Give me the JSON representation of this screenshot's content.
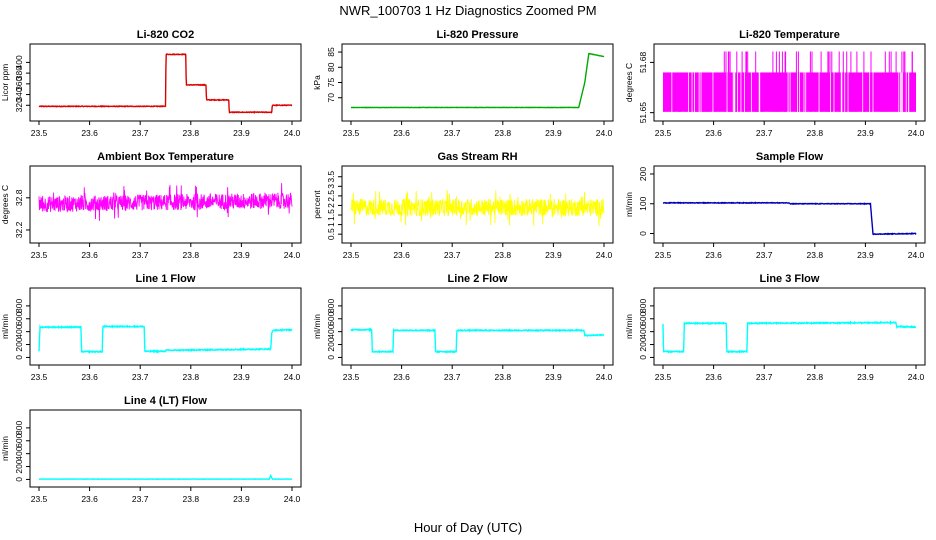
{
  "figure": {
    "title": "NWR_100703  1 Hz Diagnostics Zoomed PM",
    "xlabel": "Hour of Day (UTC)"
  },
  "chart_data": [
    {
      "type": "line",
      "title": "Li-820 CO2",
      "ylabel": "Licor ppm",
      "color": "#dd0000",
      "xlim": [
        23.5,
        24.0
      ],
      "ylim": [
        300,
        425
      ],
      "xticks": [
        "23.5",
        "23.6",
        "23.7",
        "23.8",
        "23.9",
        "24.0"
      ],
      "yticks": [
        320,
        340,
        360,
        380,
        400
      ],
      "noise": 0.6,
      "series": [
        {
          "x": [
            23.5,
            23.75,
            23.751,
            23.79,
            23.791,
            23.83,
            23.831,
            23.875,
            23.876,
            23.96,
            23.961,
            24.0
          ],
          "y": [
            318,
            318,
            415,
            415,
            358,
            358,
            330,
            330,
            307,
            307,
            320,
            320
          ]
        }
      ]
    },
    {
      "type": "line",
      "title": "Li-820 Pressure",
      "ylabel": "kPa",
      "color": "#00aa00",
      "xlim": [
        23.5,
        24.0
      ],
      "ylim": [
        64,
        86
      ],
      "xticks": [
        "23.5",
        "23.6",
        "23.7",
        "23.8",
        "23.9",
        "24.0"
      ],
      "yticks": [
        70,
        75,
        80,
        85
      ],
      "noise": 0.05,
      "series": [
        {
          "x": [
            23.5,
            23.935,
            23.95,
            23.962,
            23.97,
            23.985,
            24.0
          ],
          "y": [
            66.8,
            66.8,
            66.8,
            75,
            84.5,
            84,
            83.5
          ]
        }
      ]
    },
    {
      "type": "line",
      "title": "Li-820 Temperature",
      "ylabel": "degrees C",
      "color": "#ff00ff",
      "style": "dense",
      "xlim": [
        23.5,
        24.0
      ],
      "ylim": [
        51.648,
        51.688
      ],
      "xticks": [
        "23.5",
        "23.6",
        "23.7",
        "23.8",
        "23.9",
        "24.0"
      ],
      "yticks": [
        51.65,
        51.68
      ],
      "series": [
        {
          "x": [
            23.5,
            24.0
          ],
          "y": [
            51.674,
            51.674
          ]
        }
      ]
    },
    {
      "type": "line",
      "title": "Ambient Box Temperature",
      "ylabel": "degrees C",
      "color": "#ff00ff",
      "style": "noisy",
      "xlim": [
        23.5,
        24.0
      ],
      "ylim": [
        32.05,
        33.3
      ],
      "xticks": [
        "23.5",
        "23.6",
        "23.7",
        "23.8",
        "23.9",
        "24.0"
      ],
      "yticks": [
        32.2,
        32.8
      ],
      "noise": 0.15,
      "series": [
        {
          "x": [
            23.5,
            24.0
          ],
          "y": [
            32.68,
            32.75
          ]
        }
      ]
    },
    {
      "type": "line",
      "title": "Gas Stream RH",
      "ylabel": "percent",
      "color": "#ffff00",
      "style": "noisy",
      "xlim": [
        23.5,
        24.0
      ],
      "ylim": [
        0.3,
        3.8
      ],
      "xticks": [
        "23.5",
        "23.6",
        "23.7",
        "23.8",
        "23.9",
        "24.0"
      ],
      "yticks": [
        0.5,
        1.0,
        1.5,
        2.0,
        2.5,
        3.0,
        3.5
      ],
      "noise": 0.45,
      "series": [
        {
          "x": [
            23.5,
            24.0
          ],
          "y": [
            1.9,
            1.9
          ]
        }
      ]
    },
    {
      "type": "line",
      "title": "Sample Flow",
      "ylabel": "ml/min",
      "color": "#0000bb",
      "xlim": [
        23.5,
        24.0
      ],
      "ylim": [
        -15,
        210
      ],
      "xticks": [
        "23.5",
        "23.6",
        "23.7",
        "23.8",
        "23.9",
        "24.0"
      ],
      "yticks": [
        0,
        100,
        200
      ],
      "noise": 1.0,
      "series": [
        {
          "x": [
            23.5,
            23.75,
            23.751,
            23.91,
            23.915,
            24.0
          ],
          "y": [
            103,
            103,
            100,
            100,
            -2,
            0
          ]
        }
      ]
    },
    {
      "type": "line",
      "title": "Line 1 Flow",
      "ylabel": "ml/min",
      "color": "#00ffff",
      "xlim": [
        23.5,
        24.0
      ],
      "ylim": [
        -40,
        1000
      ],
      "xticks": [
        "23.5",
        "23.6",
        "23.7",
        "23.8",
        "23.9",
        "24.0"
      ],
      "yticks": [
        0,
        200,
        400,
        600,
        800
      ],
      "noise": 8,
      "series": [
        {
          "x": [
            23.5,
            23.502,
            23.583,
            23.584,
            23.625,
            23.626,
            23.708,
            23.709,
            23.75,
            23.751,
            23.958,
            23.96,
            23.963,
            24.0
          ],
          "y": [
            100,
            470,
            470,
            90,
            90,
            480,
            480,
            95,
            95,
            110,
            130,
            380,
            420,
            430
          ]
        }
      ]
    },
    {
      "type": "line",
      "title": "Line 2 Flow",
      "ylabel": "ml/min",
      "color": "#00ffff",
      "xlim": [
        23.5,
        24.0
      ],
      "ylim": [
        -40,
        1000
      ],
      "xticks": [
        "23.5",
        "23.6",
        "23.7",
        "23.8",
        "23.9",
        "24.0"
      ],
      "yticks": [
        0,
        200,
        400,
        600,
        800
      ],
      "noise": 8,
      "series": [
        {
          "x": [
            23.5,
            23.541,
            23.542,
            23.583,
            23.584,
            23.666,
            23.667,
            23.708,
            23.709,
            23.96,
            23.962,
            24.0
          ],
          "y": [
            430,
            430,
            90,
            90,
            420,
            420,
            90,
            90,
            420,
            420,
            340,
            350
          ]
        }
      ]
    },
    {
      "type": "line",
      "title": "Line 3 Flow",
      "ylabel": "ml/min",
      "color": "#00ffff",
      "xlim": [
        23.5,
        24.0
      ],
      "ylim": [
        -40,
        1000
      ],
      "xticks": [
        "23.5",
        "23.6",
        "23.7",
        "23.8",
        "23.9",
        "24.0"
      ],
      "yticks": [
        0,
        200,
        400,
        600,
        800
      ],
      "noise": 8,
      "series": [
        {
          "x": [
            23.5,
            23.501,
            23.541,
            23.542,
            23.625,
            23.626,
            23.666,
            23.667,
            23.96,
            23.962,
            24.0
          ],
          "y": [
            520,
            90,
            90,
            530,
            530,
            90,
            90,
            530,
            540,
            480,
            470
          ]
        }
      ]
    },
    {
      "type": "line",
      "title": "Line 4 (LT) Flow",
      "ylabel": "ml/min",
      "color": "#00ffff",
      "xlim": [
        23.5,
        24.0
      ],
      "ylim": [
        -40,
        1000
      ],
      "xticks": [
        "23.5",
        "23.6",
        "23.7",
        "23.8",
        "23.9",
        "24.0"
      ],
      "yticks": [
        0,
        200,
        400,
        600,
        800
      ],
      "noise": 2,
      "series": [
        {
          "x": [
            23.5,
            23.955,
            23.958,
            23.961,
            24.0
          ],
          "y": [
            5,
            5,
            60,
            5,
            5
          ]
        }
      ]
    }
  ]
}
